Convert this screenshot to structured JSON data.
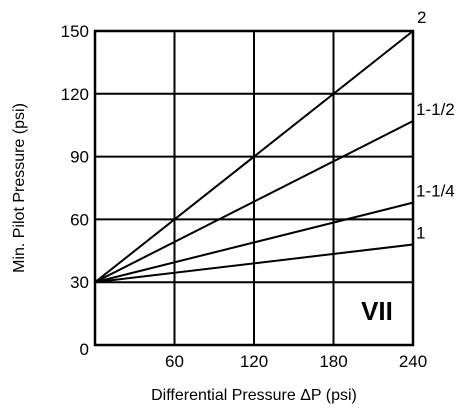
{
  "chart_data": {
    "type": "line",
    "xlabel": "Differential Pressure ΔP (psi)",
    "ylabel": "Min. Pilot Pressure (psi)",
    "xlim": [
      0,
      240
    ],
    "ylim": [
      0,
      150
    ],
    "x_ticks": [
      "60",
      "120",
      "180",
      "240"
    ],
    "y_ticks": [
      "0",
      "30",
      "60",
      "90",
      "120",
      "150"
    ],
    "grid": true,
    "panel_label": "VII",
    "series": [
      {
        "name": "2",
        "x": [
          0,
          240
        ],
        "y": [
          30,
          150
        ]
      },
      {
        "name": "1-1/2",
        "x": [
          0,
          240
        ],
        "y": [
          30,
          107
        ]
      },
      {
        "name": "1-1/4",
        "x": [
          0,
          240
        ],
        "y": [
          30,
          68
        ]
      },
      {
        "name": "1",
        "x": [
          0,
          240
        ],
        "y": [
          30,
          48
        ]
      }
    ]
  }
}
